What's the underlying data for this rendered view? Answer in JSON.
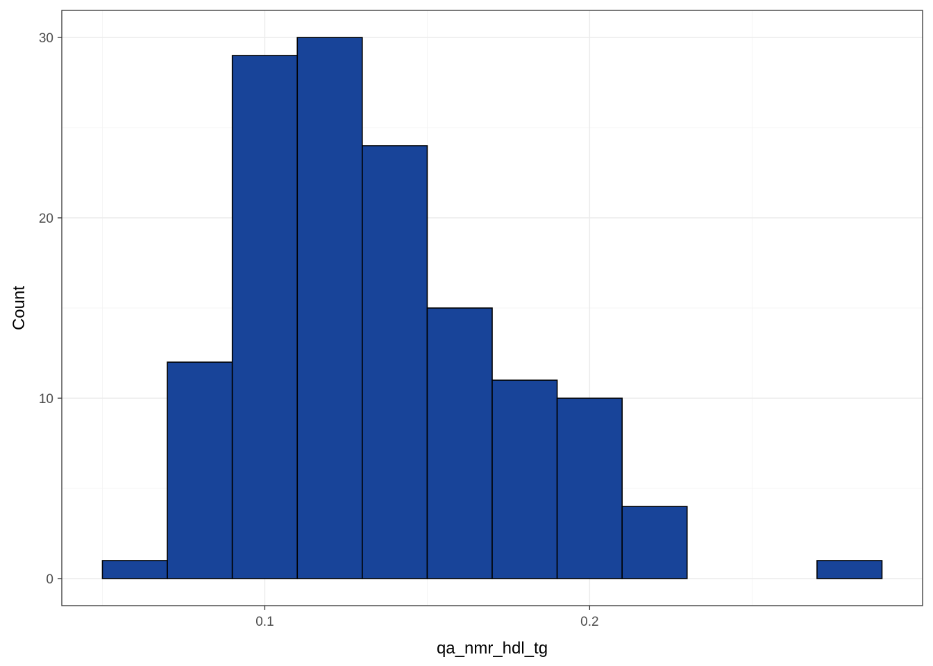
{
  "chart_data": {
    "type": "bar",
    "subtype": "histogram",
    "xlabel": "qa_nmr_hdl_tg",
    "ylabel": "Count",
    "bin_width": 0.02,
    "bins": [
      {
        "x0": 0.05,
        "x1": 0.07,
        "count": 1
      },
      {
        "x0": 0.07,
        "x1": 0.09,
        "count": 12
      },
      {
        "x0": 0.09,
        "x1": 0.11,
        "count": 29
      },
      {
        "x0": 0.11,
        "x1": 0.13,
        "count": 30
      },
      {
        "x0": 0.13,
        "x1": 0.15,
        "count": 24
      },
      {
        "x0": 0.15,
        "x1": 0.17,
        "count": 15
      },
      {
        "x0": 0.17,
        "x1": 0.19,
        "count": 11
      },
      {
        "x0": 0.19,
        "x1": 0.21,
        "count": 10
      },
      {
        "x0": 0.21,
        "x1": 0.23,
        "count": 4
      },
      {
        "x0": 0.23,
        "x1": 0.25,
        "count": 0
      },
      {
        "x0": 0.25,
        "x1": 0.27,
        "count": 0
      },
      {
        "x0": 0.27,
        "x1": 0.29,
        "count": 1
      }
    ],
    "x_ticks": [
      0.1,
      0.2
    ],
    "x_tick_labels": [
      "0.1",
      "0.2"
    ],
    "y_ticks": [
      0,
      10,
      20,
      30
    ],
    "y_tick_labels": [
      "0",
      "10",
      "20",
      "30"
    ],
    "xlim": [
      0.0375,
      0.3025
    ],
    "ylim": [
      -1.5,
      31.5
    ],
    "grid": true,
    "legend": "none",
    "colors": {
      "bar_fill": "#184499",
      "bar_stroke": "#000000",
      "grid_major": "#ebebeb",
      "grid_minor": "#f2f2f2",
      "panel_border": "#333333",
      "tick_text": "#4d4d4d"
    }
  }
}
